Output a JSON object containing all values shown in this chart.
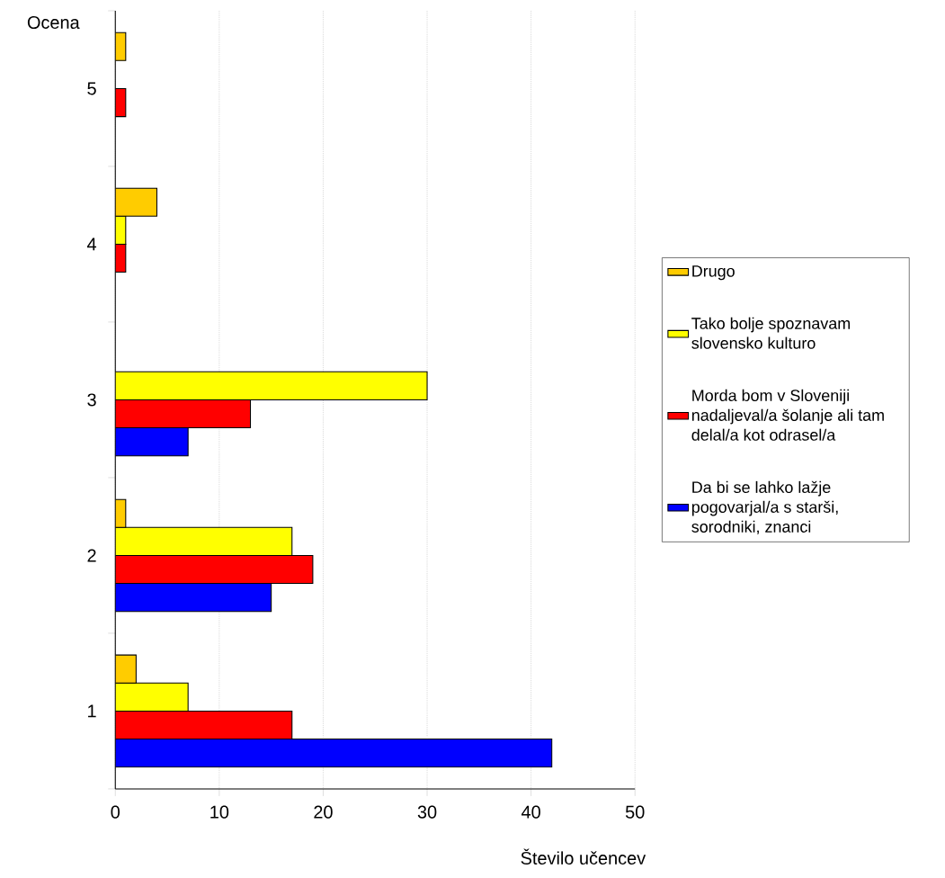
{
  "chart_data": {
    "type": "bar",
    "orientation": "horizontal",
    "xlabel": "Število učencev",
    "ylabel": "Ocena",
    "categories": [
      "5",
      "4",
      "3",
      "2",
      "1"
    ],
    "series": [
      {
        "name": "Da bi se lahko lažje pogovarjal/a s starši, sorodniki, znanci",
        "color": "#0000ff",
        "values": [
          null,
          null,
          7,
          15,
          42
        ]
      },
      {
        "name": "Morda bom v Sloveniji nadaljeval/a šolanje ali tam delal/a kot odrasel/a",
        "color": "#ff0000",
        "values": [
          1,
          1,
          13,
          19,
          17
        ]
      },
      {
        "name": "Tako bolje spoznavam slovensko kulturo",
        "color": "#ffff00",
        "values": [
          null,
          1,
          30,
          17,
          7
        ]
      },
      {
        "name": "Drugo",
        "color": "#ffcc00",
        "values": [
          1,
          4,
          null,
          1,
          2
        ]
      }
    ],
    "xlim": [
      0,
      50
    ],
    "xticks": [
      0,
      10,
      20,
      30,
      40,
      50
    ],
    "grid": "x",
    "legend": "right"
  }
}
